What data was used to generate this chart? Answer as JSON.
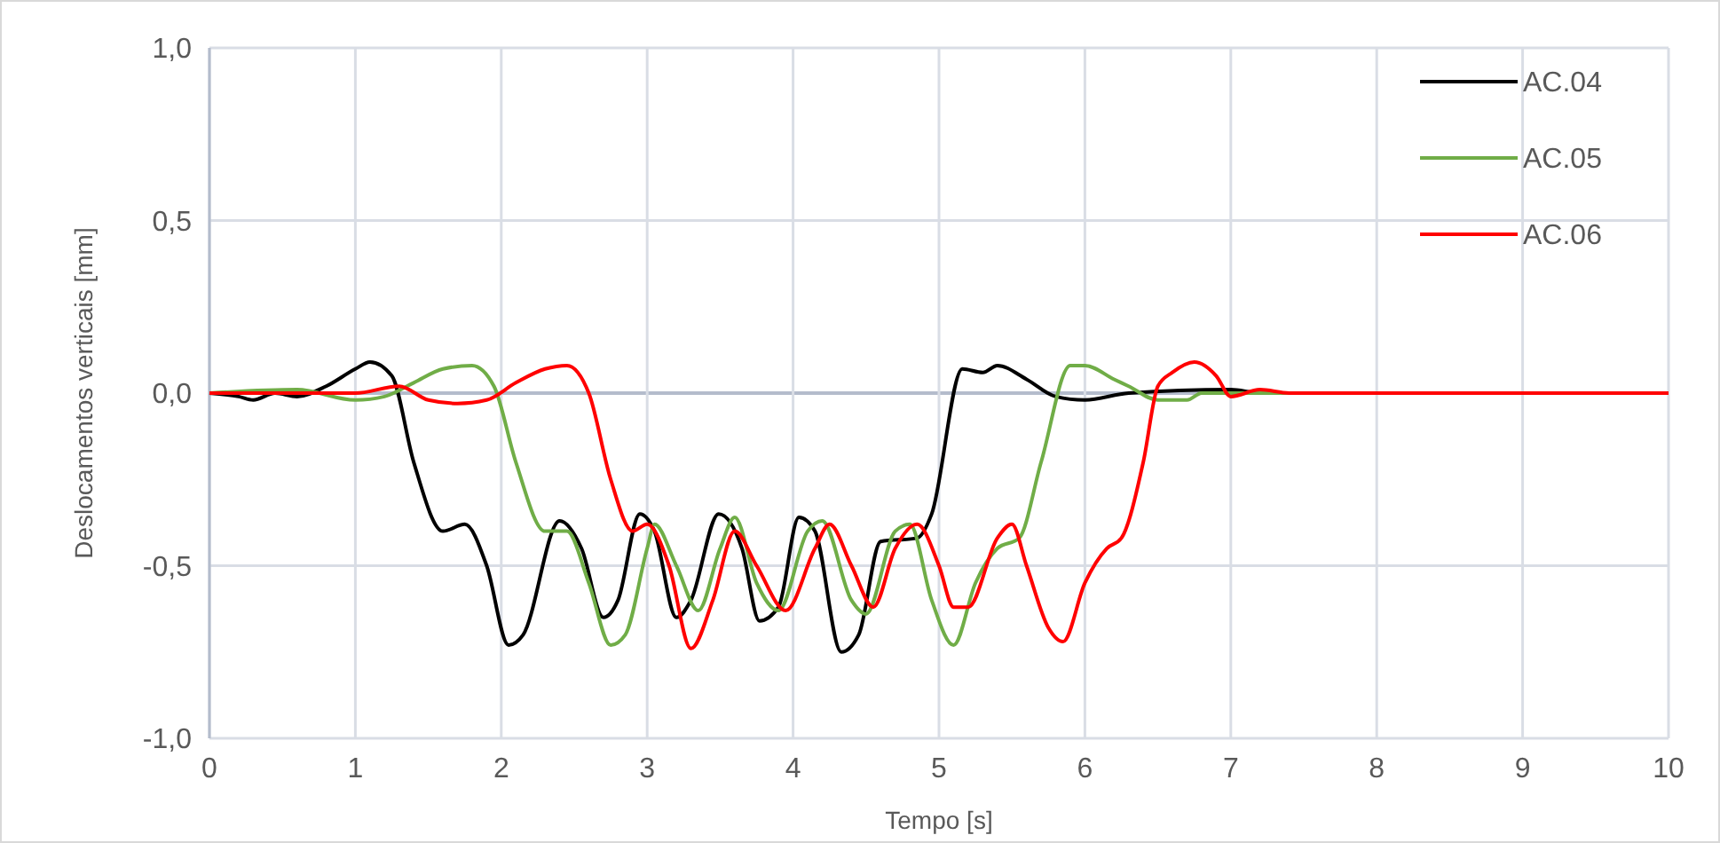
{
  "chart_data": {
    "type": "line",
    "xlabel": "Tempo [s]",
    "ylabel": "Deslocamentos verticais [mm]",
    "xlim": [
      0,
      10
    ],
    "ylim": [
      -1,
      1
    ],
    "xticks": [
      0,
      1,
      2,
      3,
      4,
      5,
      6,
      7,
      8,
      9,
      10
    ],
    "yticks": [
      {
        "value": -1,
        "label": "-1,0"
      },
      {
        "value": -0.5,
        "label": "-0,5"
      },
      {
        "value": 0,
        "label": "0,0"
      },
      {
        "value": 0.5,
        "label": "0,5"
      },
      {
        "value": 1,
        "label": "1,0"
      }
    ],
    "grid": true,
    "legend": "top right",
    "marker": "none",
    "line_style": "solid",
    "series": [
      {
        "name": "AC.04",
        "color": "#000000",
        "x": [
          0,
          0.2,
          0.3,
          0.45,
          0.6,
          0.8,
          1.0,
          1.1,
          1.25,
          1.4,
          1.6,
          1.75,
          1.9,
          2.05,
          2.15,
          2.4,
          2.55,
          2.7,
          2.8,
          2.95,
          3.05,
          3.2,
          3.3,
          3.49,
          3.65,
          3.77,
          3.9,
          4.04,
          4.15,
          4.33,
          4.45,
          4.6,
          4.85,
          4.95,
          5.16,
          5.3,
          5.4,
          5.6,
          5.8,
          6.0,
          6.3,
          7.0,
          7.2,
          10
        ],
        "values": [
          0,
          -0.01,
          -0.02,
          0,
          -0.01,
          0.02,
          0.07,
          0.09,
          0.05,
          -0.2,
          -0.4,
          -0.38,
          -0.5,
          -0.73,
          -0.7,
          -0.37,
          -0.45,
          -0.65,
          -0.6,
          -0.35,
          -0.4,
          -0.65,
          -0.6,
          -0.35,
          -0.45,
          -0.66,
          -0.62,
          -0.36,
          -0.4,
          -0.75,
          -0.7,
          -0.43,
          -0.42,
          -0.35,
          0.07,
          0.06,
          0.08,
          0.04,
          -0.01,
          -0.02,
          0,
          0.01,
          0,
          0
        ]
      },
      {
        "name": "AC.05",
        "color": "#70ad47",
        "x": [
          0,
          0.6,
          1.0,
          1.2,
          1.4,
          1.6,
          1.8,
          1.95,
          2.1,
          2.3,
          2.45,
          2.6,
          2.75,
          2.85,
          3.0,
          3.05,
          3.2,
          3.35,
          3.5,
          3.6,
          3.75,
          3.9,
          4.1,
          4.2,
          4.4,
          4.5,
          4.7,
          4.8,
          4.95,
          5.1,
          5.25,
          5.4,
          5.55,
          5.7,
          5.9,
          6.0,
          6.2,
          6.3,
          6.5,
          6.7,
          6.8,
          7.0,
          10
        ],
        "values": [
          0,
          0.01,
          -0.02,
          -0.01,
          0.03,
          0.07,
          0.08,
          0.02,
          -0.2,
          -0.4,
          -0.4,
          -0.55,
          -0.73,
          -0.7,
          -0.45,
          -0.38,
          -0.5,
          -0.63,
          -0.45,
          -0.36,
          -0.55,
          -0.63,
          -0.4,
          -0.37,
          -0.6,
          -0.64,
          -0.4,
          -0.38,
          -0.6,
          -0.73,
          -0.55,
          -0.45,
          -0.42,
          -0.2,
          0.08,
          0.08,
          0.04,
          0.02,
          -0.02,
          -0.02,
          0,
          0,
          0
        ]
      },
      {
        "name": "AC.06",
        "color": "#ff0000",
        "x": [
          0,
          1.0,
          1.3,
          1.5,
          1.7,
          1.9,
          2.1,
          2.3,
          2.45,
          2.6,
          2.75,
          2.9,
          3.0,
          3.15,
          3.3,
          3.45,
          3.6,
          3.75,
          3.95,
          4.15,
          4.25,
          4.4,
          4.55,
          4.7,
          4.85,
          5.0,
          5.1,
          5.2,
          5.4,
          5.5,
          5.6,
          5.75,
          5.85,
          6.0,
          6.15,
          6.25,
          6.4,
          6.5,
          6.6,
          6.75,
          6.9,
          7.0,
          7.2,
          7.4,
          10
        ],
        "values": [
          0,
          0,
          0.02,
          -0.02,
          -0.03,
          -0.02,
          0.03,
          0.07,
          0.08,
          0,
          -0.25,
          -0.4,
          -0.38,
          -0.5,
          -0.74,
          -0.6,
          -0.4,
          -0.5,
          -0.63,
          -0.45,
          -0.38,
          -0.5,
          -0.62,
          -0.45,
          -0.38,
          -0.5,
          -0.62,
          -0.62,
          -0.42,
          -0.38,
          -0.5,
          -0.68,
          -0.72,
          -0.55,
          -0.45,
          -0.42,
          -0.2,
          0.02,
          0.06,
          0.09,
          0.05,
          -0.01,
          0.01,
          0,
          0
        ]
      }
    ]
  }
}
